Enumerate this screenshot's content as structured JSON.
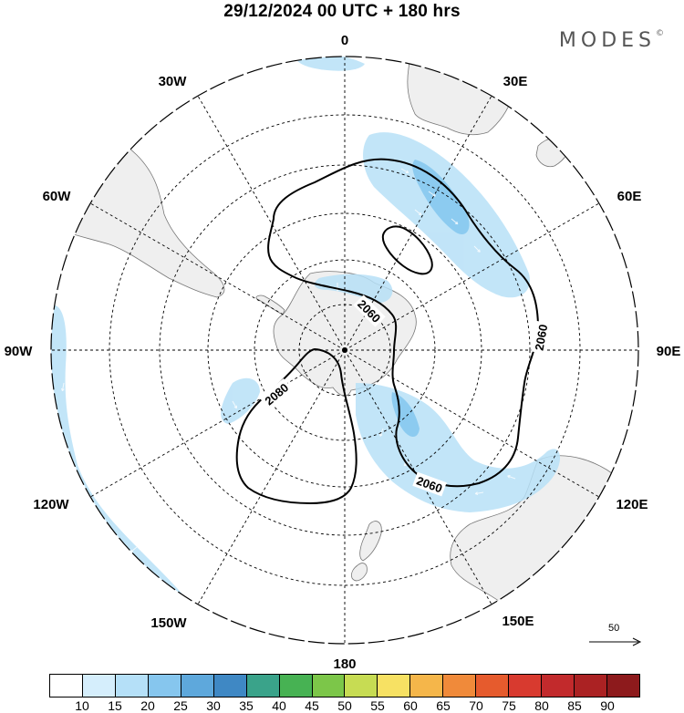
{
  "header": {
    "title": "29/12/2024  00 UTC  + 180 hrs",
    "brand": "MODES",
    "brand_mark": "©"
  },
  "map": {
    "projection": "south polar stereographic",
    "longitude_labels": {
      "top": "0",
      "top_right": "30E",
      "right_upper": "60E",
      "right": "90E",
      "right_lower": "120E",
      "bottom_right": "150E",
      "bottom": "180",
      "bottom_left": "150W",
      "left_lower": "120W",
      "left": "90W",
      "left_upper": "60W",
      "top_left": "30W"
    },
    "contours": [
      {
        "id": "outer",
        "label": "2060"
      },
      {
        "id": "left",
        "label": "2080"
      }
    ],
    "contour_labels": [
      "2060",
      "2060",
      "2060",
      "2080"
    ],
    "colors": {
      "land": "#efefef",
      "coast": "#777777",
      "shade": "#b7e0f7",
      "shade_dark": "#8ccbf0",
      "contour": "#000000"
    }
  },
  "reference_vector": {
    "label": "50"
  },
  "colorbar": {
    "ticks": [
      "10",
      "15",
      "20",
      "25",
      "30",
      "35",
      "40",
      "45",
      "50",
      "55",
      "60",
      "65",
      "70",
      "75",
      "80",
      "85",
      "90"
    ],
    "colors": [
      "#ffffff",
      "#d5eefc",
      "#b5e0f8",
      "#86c6ee",
      "#5ea8dc",
      "#3f88c4",
      "#3aa38a",
      "#47b253",
      "#7cc649",
      "#c7dc53",
      "#f7e163",
      "#f5b64a",
      "#f08a3a",
      "#e65b2d",
      "#d83a2f",
      "#c22a2c",
      "#ab2223",
      "#8d1a1c"
    ]
  }
}
